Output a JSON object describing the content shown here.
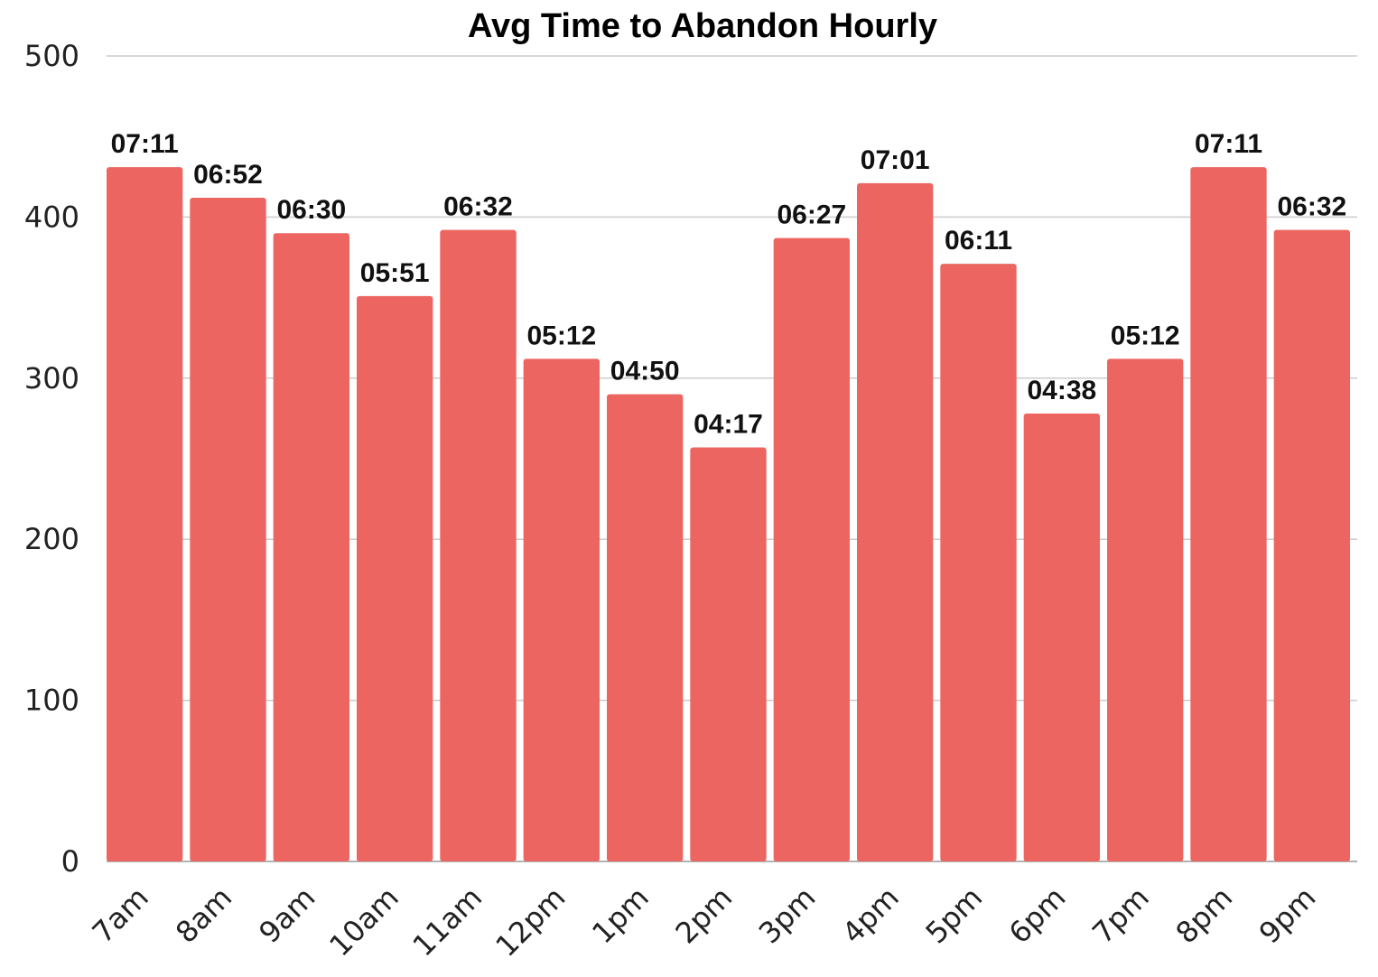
{
  "chart_data": {
    "type": "bar",
    "title": "Avg Time to Abandon Hourly",
    "xlabel": "",
    "ylabel": "",
    "categories": [
      "7am",
      "8am",
      "9am",
      "10am",
      "11am",
      "12pm",
      "1pm",
      "2pm",
      "3pm",
      "4pm",
      "5pm",
      "6pm",
      "7pm",
      "8pm",
      "9pm"
    ],
    "values": [
      431,
      412,
      390,
      351,
      392,
      312,
      290,
      257,
      387,
      421,
      371,
      278,
      312,
      431,
      392
    ],
    "data_labels": [
      "07:11",
      "06:52",
      "06:30",
      "05:51",
      "06:32",
      "05:12",
      "04:50",
      "04:17",
      "06:27",
      "07:01",
      "06:11",
      "04:38",
      "05:12",
      "07:11",
      "06:32"
    ],
    "y_ticks": [
      0,
      100,
      200,
      300,
      400,
      500
    ],
    "ylim": [
      0,
      500
    ],
    "grid": true,
    "legend": "none",
    "bar_color": "#ec6560"
  }
}
